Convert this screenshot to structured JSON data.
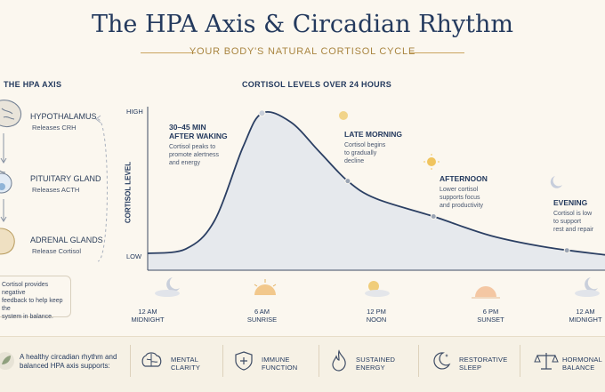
{
  "header": {
    "title": "The HPA Axis & Circadian Rhythm",
    "subtitle": "YOUR BODY'S NATURAL CORTISOL CYCLE"
  },
  "hpa": {
    "title": "THE HPA AXIS",
    "organs": [
      {
        "name": "HYPOTHALAMUS",
        "sub": "Releases CRH",
        "color": "#5b7fb0"
      },
      {
        "name": "PITUITARY GLAND",
        "sub": "Releases ACTH",
        "color": "#4a8cc4"
      },
      {
        "name": "ADRENAL GLANDS",
        "sub": "Release Cortisol",
        "color": "#c39a3e"
      }
    ],
    "feedback_lines": [
      "Cortisol provides negative",
      "feedback to help keep the",
      "system in balance."
    ]
  },
  "chart_data": {
    "type": "line",
    "title": "CORTISOL LEVELS OVER 24 HOURS",
    "ylabel": "CORTISOL LEVEL",
    "y_ticks": [
      "HIGH",
      "LOW"
    ],
    "x_ticks": [
      {
        "top": "12 AM",
        "bottom": "MIDNIGHT"
      },
      {
        "top": "6 AM",
        "bottom": "SUNRISE"
      },
      {
        "top": "12 PM",
        "bottom": "NOON"
      },
      {
        "top": "6 PM",
        "bottom": "SUNSET"
      },
      {
        "top": "12 AM",
        "bottom": "MIDNIGHT"
      }
    ],
    "x_range": [
      0,
      24
    ],
    "y_range": [
      0,
      1
    ],
    "points": [
      {
        "x": 0,
        "y": 0.03
      },
      {
        "x": 2,
        "y": 0.06
      },
      {
        "x": 3.5,
        "y": 0.25
      },
      {
        "x": 5,
        "y": 0.75
      },
      {
        "x": 6,
        "y": 0.98
      },
      {
        "x": 7.5,
        "y": 0.92
      },
      {
        "x": 9,
        "y": 0.72
      },
      {
        "x": 10.5,
        "y": 0.52
      },
      {
        "x": 12,
        "y": 0.4
      },
      {
        "x": 15,
        "y": 0.28
      },
      {
        "x": 18,
        "y": 0.15
      },
      {
        "x": 21,
        "y": 0.07
      },
      {
        "x": 24,
        "y": 0.02
      }
    ],
    "markers": [
      {
        "x": 6,
        "y": 0.98
      },
      {
        "x": 10.5,
        "y": 0.52
      },
      {
        "x": 15,
        "y": 0.28
      },
      {
        "x": 22,
        "y": 0.05
      }
    ],
    "annotations": [
      {
        "title": [
          "30–45 MIN",
          "AFTER WAKING"
        ],
        "text": [
          "Cortisol peaks to",
          "promote alertness",
          "and energy"
        ]
      },
      {
        "title": [
          "LATE MORNING"
        ],
        "text": [
          "Cortisol begins",
          "to gradually",
          "decline"
        ]
      },
      {
        "title": [
          "AFTERNOON"
        ],
        "text": [
          "Lower cortisol",
          "supports focus",
          "and productivity"
        ]
      },
      {
        "title": [
          "EVENING"
        ],
        "text": [
          "Cortisol is low",
          "to support",
          "rest and repair"
        ]
      }
    ],
    "grid": false,
    "colors": {
      "line": "#2b3f63",
      "fill": "#dde3ec",
      "marker": "#9aa4b3"
    }
  },
  "benefits": {
    "intro": [
      "A healthy circadian rhythm and",
      "balanced HPA axis supports:"
    ],
    "items": [
      {
        "icon": "brain-icon",
        "label": [
          "MENTAL",
          "CLARITY"
        ]
      },
      {
        "icon": "shield-icon",
        "label": [
          "IMMUNE",
          "FUNCTION"
        ]
      },
      {
        "icon": "flame-icon",
        "label": [
          "SUSTAINED",
          "ENERGY"
        ]
      },
      {
        "icon": "moon-icon",
        "label": [
          "RESTORATIVE",
          "SLEEP"
        ]
      },
      {
        "icon": "scale-icon",
        "label": [
          "HORMONAL",
          "BALANCE"
        ]
      }
    ]
  }
}
